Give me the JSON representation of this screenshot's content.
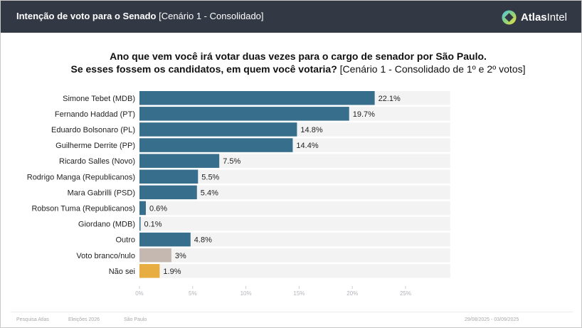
{
  "header": {
    "title_bold": "Intenção de voto para o Senado",
    "title_rest": " [Cenário 1 - Consolidado]",
    "brand_bold": "Atlas",
    "brand_rest": "Intel",
    "brand_icon": "atlasintel-logo-icon"
  },
  "question": {
    "line1": "Ano que vem você irá votar duas vezes para o cargo de senador por São Paulo.",
    "line2_bold": "Se esses fossem os candidatos, em quem você votaria?",
    "line2_rest": " [Cenário 1 - Consolidado de 1º e 2º votos]"
  },
  "chart_data": {
    "type": "bar",
    "orientation": "horizontal",
    "title": "Ano que vem você irá votar duas vezes para o cargo de senador por São Paulo. Se esses fossem os candidatos, em quem você votaria? [Cenário 1 - Consolidado de 1º e 2º votos]",
    "xlabel": "",
    "ylabel": "",
    "xlim": [
      0,
      29.2
    ],
    "xticks": [
      0,
      5,
      10,
      15,
      20,
      25
    ],
    "xtick_labels": [
      "0%",
      "5%",
      "10%",
      "15%",
      "20%",
      "25%"
    ],
    "grid": false,
    "categories": [
      "Simone Tebet (MDB)",
      "Fernando Haddad (PT)",
      "Eduardo Bolsonaro (PL)",
      "Guilherme Derrite (PP)",
      "Ricardo Salles (Novo)",
      "Rodrigo Manga (Republicanos)",
      "Mara Gabrilli (PSD)",
      "Robson Tuma (Republicanos)",
      "Giordano (MDB)",
      "Outro",
      "Voto branco/nulo",
      "Não sei"
    ],
    "values": [
      22.1,
      19.7,
      14.8,
      14.4,
      7.5,
      5.5,
      5.4,
      0.6,
      0.1,
      4.8,
      3,
      1.9
    ],
    "value_labels": [
      "22.1%",
      "19.7%",
      "14.8%",
      "14.4%",
      "7.5%",
      "5.5%",
      "5.4%",
      "0.6%",
      "0.1%",
      "4.8%",
      "3%",
      "1.9%"
    ],
    "colors": [
      "#376e8c",
      "#376e8c",
      "#376e8c",
      "#376e8c",
      "#376e8c",
      "#376e8c",
      "#376e8c",
      "#376e8c",
      "#376e8c",
      "#376e8c",
      "#c5b8b0",
      "#e7ad40"
    ],
    "track_color": "#f3f3f3",
    "legend": "none"
  },
  "footer": {
    "source": "Pesquisa Atlas",
    "election": "Eleições 2026",
    "region": "São Paulo",
    "date_range": "29/08/2025 - 03/09/2025"
  }
}
